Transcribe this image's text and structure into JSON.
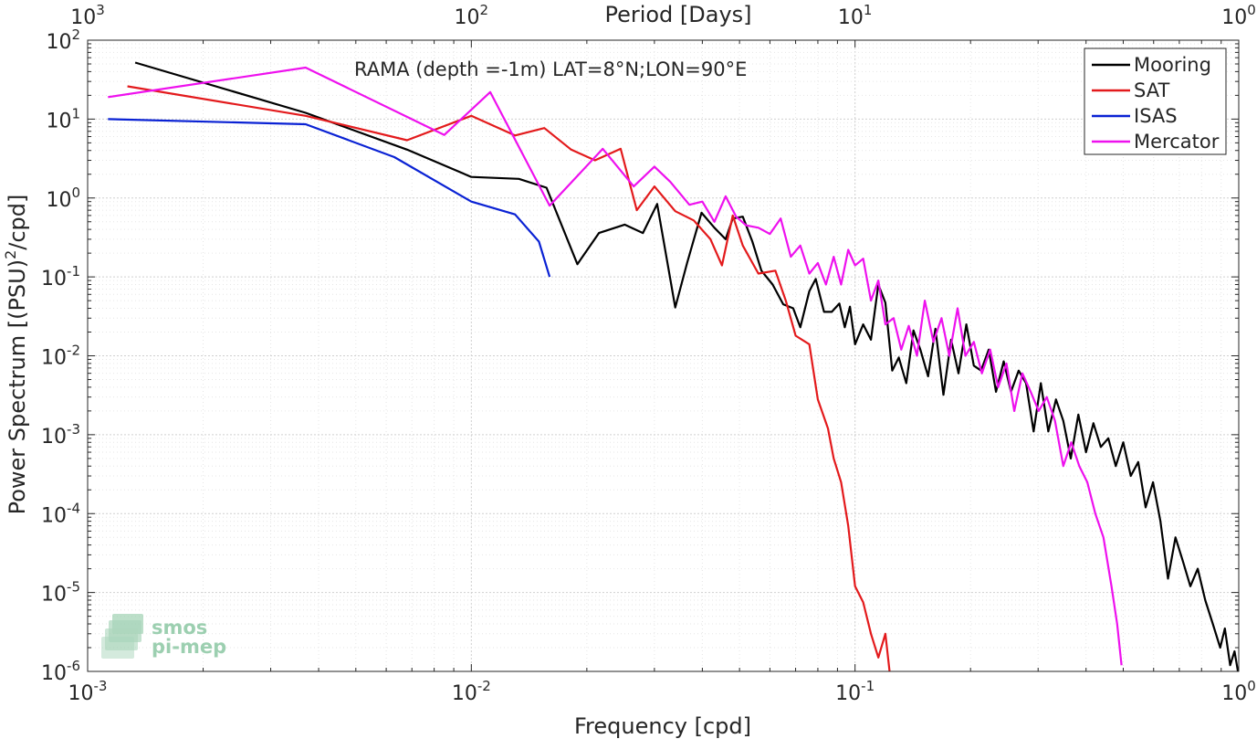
{
  "chart_data": {
    "type": "line",
    "title": "",
    "annotation": "RAMA (depth =-1m) LAT=8°N;LON=90°E",
    "xlabel": "Frequency [cpd]",
    "ylabel_main": "Power Spectrum [(PSU)",
    "ylabel_sup": "2",
    "ylabel_tail": "/cpd]",
    "top_xlabel": "Period [Days]",
    "xscale": "log",
    "yscale": "log",
    "xlim": [
      0.001,
      1
    ],
    "ylim": [
      1e-06,
      100
    ],
    "grid": true,
    "legend_position": "top-right",
    "x_ticks": [
      {
        "value": 0.001,
        "base": "10",
        "exp": "-3"
      },
      {
        "value": 0.01,
        "base": "10",
        "exp": "-2"
      },
      {
        "value": 0.1,
        "base": "10",
        "exp": "-1"
      },
      {
        "value": 1,
        "base": "10",
        "exp": "0"
      }
    ],
    "y_ticks": [
      {
        "value": 100,
        "base": "10",
        "exp": "2"
      },
      {
        "value": 10,
        "base": "10",
        "exp": "1"
      },
      {
        "value": 1,
        "base": "10",
        "exp": "0"
      },
      {
        "value": 0.1,
        "base": "10",
        "exp": "-1"
      },
      {
        "value": 0.01,
        "base": "10",
        "exp": "-2"
      },
      {
        "value": 0.001,
        "base": "10",
        "exp": "-3"
      },
      {
        "value": 0.0001,
        "base": "10",
        "exp": "-4"
      },
      {
        "value": 1e-05,
        "base": "10",
        "exp": "-5"
      },
      {
        "value": 1e-06,
        "base": "10",
        "exp": "-6"
      }
    ],
    "top_ticks": [
      {
        "value": 0.001,
        "base": "10",
        "exp": "3"
      },
      {
        "value": 0.01,
        "base": "10",
        "exp": "2"
      },
      {
        "value": 0.1,
        "base": "10",
        "exp": "1"
      },
      {
        "value": 1,
        "base": "10",
        "exp": "0"
      }
    ],
    "series": [
      {
        "name": "Mooring",
        "color": "#000000",
        "points": [
          [
            0.00133,
            52
          ],
          [
            0.0037,
            12
          ],
          [
            0.0068,
            4.1
          ],
          [
            0.01,
            1.85
          ],
          [
            0.0133,
            1.75
          ],
          [
            0.0157,
            1.35
          ],
          [
            0.0189,
            0.145
          ],
          [
            0.0215,
            0.36
          ],
          [
            0.0251,
            0.46
          ],
          [
            0.028,
            0.36
          ],
          [
            0.0305,
            0.84
          ],
          [
            0.034,
            0.041
          ],
          [
            0.0365,
            0.15
          ],
          [
            0.0398,
            0.65
          ],
          [
            0.043,
            0.42
          ],
          [
            0.046,
            0.3
          ],
          [
            0.048,
            0.55
          ],
          [
            0.051,
            0.58
          ],
          [
            0.054,
            0.28
          ],
          [
            0.057,
            0.12
          ],
          [
            0.061,
            0.08
          ],
          [
            0.065,
            0.045
          ],
          [
            0.069,
            0.04
          ],
          [
            0.072,
            0.023
          ],
          [
            0.076,
            0.066
          ],
          [
            0.079,
            0.094
          ],
          [
            0.083,
            0.036
          ],
          [
            0.087,
            0.036
          ],
          [
            0.091,
            0.046
          ],
          [
            0.094,
            0.023
          ],
          [
            0.097,
            0.042
          ],
          [
            0.1,
            0.014
          ],
          [
            0.105,
            0.025
          ],
          [
            0.11,
            0.016
          ],
          [
            0.115,
            0.08
          ],
          [
            0.12,
            0.047
          ],
          [
            0.125,
            0.0065
          ],
          [
            0.13,
            0.0095
          ],
          [
            0.136,
            0.0045
          ],
          [
            0.142,
            0.021
          ],
          [
            0.148,
            0.012
          ],
          [
            0.155,
            0.0055
          ],
          [
            0.162,
            0.022
          ],
          [
            0.17,
            0.0032
          ],
          [
            0.178,
            0.016
          ],
          [
            0.186,
            0.006
          ],
          [
            0.195,
            0.025
          ],
          [
            0.204,
            0.0075
          ],
          [
            0.213,
            0.0065
          ],
          [
            0.223,
            0.012
          ],
          [
            0.233,
            0.0035
          ],
          [
            0.244,
            0.0085
          ],
          [
            0.255,
            0.0035
          ],
          [
            0.267,
            0.0065
          ],
          [
            0.279,
            0.0045
          ],
          [
            0.292,
            0.0011
          ],
          [
            0.305,
            0.0045
          ],
          [
            0.319,
            0.0011
          ],
          [
            0.334,
            0.0028
          ],
          [
            0.349,
            0.0015
          ],
          [
            0.365,
            0.0005
          ],
          [
            0.382,
            0.0018
          ],
          [
            0.4,
            0.0006
          ],
          [
            0.418,
            0.0014
          ],
          [
            0.437,
            0.0007
          ],
          [
            0.457,
            0.0009
          ],
          [
            0.478,
            0.0004
          ],
          [
            0.5,
            0.0008
          ],
          [
            0.523,
            0.0003
          ],
          [
            0.547,
            0.00045
          ],
          [
            0.572,
            0.00012
          ],
          [
            0.598,
            0.00025
          ],
          [
            0.625,
            8e-05
          ],
          [
            0.654,
            1.5e-05
          ],
          [
            0.684,
            5e-05
          ],
          [
            0.715,
            2.5e-05
          ],
          [
            0.748,
            1.2e-05
          ],
          [
            0.782,
            2e-05
          ],
          [
            0.818,
            8e-06
          ],
          [
            0.856,
            4e-06
          ],
          [
            0.895,
            2e-06
          ],
          [
            0.92,
            3.5e-06
          ],
          [
            0.95,
            1.2e-06
          ],
          [
            0.975,
            1.8e-06
          ],
          [
            0.995,
            1e-06
          ]
        ]
      },
      {
        "name": "SAT",
        "color": "#e31a1c",
        "points": [
          [
            0.00127,
            26
          ],
          [
            0.0037,
            11
          ],
          [
            0.0068,
            5.4
          ],
          [
            0.01,
            11
          ],
          [
            0.013,
            6.2
          ],
          [
            0.0155,
            7.7
          ],
          [
            0.0182,
            4.1
          ],
          [
            0.021,
            3.0
          ],
          [
            0.0245,
            4.2
          ],
          [
            0.027,
            0.7
          ],
          [
            0.03,
            1.4
          ],
          [
            0.034,
            0.68
          ],
          [
            0.038,
            0.52
          ],
          [
            0.042,
            0.3
          ],
          [
            0.045,
            0.14
          ],
          [
            0.048,
            0.6
          ],
          [
            0.051,
            0.25
          ],
          [
            0.056,
            0.11
          ],
          [
            0.062,
            0.12
          ],
          [
            0.066,
            0.05
          ],
          [
            0.07,
            0.018
          ],
          [
            0.076,
            0.014
          ],
          [
            0.08,
            0.0028
          ],
          [
            0.085,
            0.0012
          ],
          [
            0.088,
            0.0005
          ],
          [
            0.092,
            0.00025
          ],
          [
            0.096,
            7e-05
          ],
          [
            0.1,
            1.2e-05
          ],
          [
            0.105,
            7.5e-06
          ],
          [
            0.11,
            3e-06
          ],
          [
            0.115,
            1.5e-06
          ],
          [
            0.12,
            3e-06
          ],
          [
            0.123,
            9.5e-07
          ]
        ]
      },
      {
        "name": "ISAS",
        "color": "#0a22d4",
        "points": [
          [
            0.00113,
            10
          ],
          [
            0.0037,
            8.6
          ],
          [
            0.0063,
            3.3
          ],
          [
            0.01,
            0.9
          ],
          [
            0.013,
            0.62
          ],
          [
            0.015,
            0.28
          ],
          [
            0.016,
            0.1
          ]
        ]
      },
      {
        "name": "Mercator",
        "color": "#ee11ee",
        "points": [
          [
            0.00113,
            19
          ],
          [
            0.0037,
            45
          ],
          [
            0.0085,
            6.3
          ],
          [
            0.0112,
            22
          ],
          [
            0.016,
            0.8
          ],
          [
            0.022,
            4.2
          ],
          [
            0.0265,
            1.4
          ],
          [
            0.03,
            2.5
          ],
          [
            0.033,
            1.6
          ],
          [
            0.037,
            0.82
          ],
          [
            0.04,
            0.9
          ],
          [
            0.043,
            0.5
          ],
          [
            0.046,
            1.05
          ],
          [
            0.049,
            0.58
          ],
          [
            0.052,
            0.45
          ],
          [
            0.056,
            0.42
          ],
          [
            0.06,
            0.35
          ],
          [
            0.064,
            0.55
          ],
          [
            0.068,
            0.18
          ],
          [
            0.072,
            0.25
          ],
          [
            0.076,
            0.11
          ],
          [
            0.08,
            0.15
          ],
          [
            0.084,
            0.08
          ],
          [
            0.088,
            0.18
          ],
          [
            0.092,
            0.08
          ],
          [
            0.096,
            0.22
          ],
          [
            0.1,
            0.14
          ],
          [
            0.105,
            0.17
          ],
          [
            0.11,
            0.05
          ],
          [
            0.115,
            0.09
          ],
          [
            0.12,
            0.025
          ],
          [
            0.126,
            0.03
          ],
          [
            0.132,
            0.012
          ],
          [
            0.138,
            0.024
          ],
          [
            0.145,
            0.01
          ],
          [
            0.152,
            0.05
          ],
          [
            0.16,
            0.015
          ],
          [
            0.168,
            0.03
          ],
          [
            0.176,
            0.01
          ],
          [
            0.185,
            0.04
          ],
          [
            0.194,
            0.01
          ],
          [
            0.204,
            0.015
          ],
          [
            0.214,
            0.006
          ],
          [
            0.225,
            0.012
          ],
          [
            0.236,
            0.004
          ],
          [
            0.248,
            0.008
          ],
          [
            0.26,
            0.002
          ],
          [
            0.273,
            0.006
          ],
          [
            0.287,
            0.0035
          ],
          [
            0.301,
            0.002
          ],
          [
            0.316,
            0.003
          ],
          [
            0.332,
            0.0015
          ],
          [
            0.349,
            0.0004
          ],
          [
            0.366,
            0.0008
          ],
          [
            0.384,
            0.0004
          ],
          [
            0.403,
            0.00025
          ],
          [
            0.423,
            0.0001
          ],
          [
            0.444,
            5e-05
          ],
          [
            0.466,
            1.2e-05
          ],
          [
            0.482,
            4e-06
          ],
          [
            0.495,
            1.2e-06
          ]
        ]
      }
    ],
    "logo_text": [
      "smos",
      "pi-mep"
    ]
  }
}
